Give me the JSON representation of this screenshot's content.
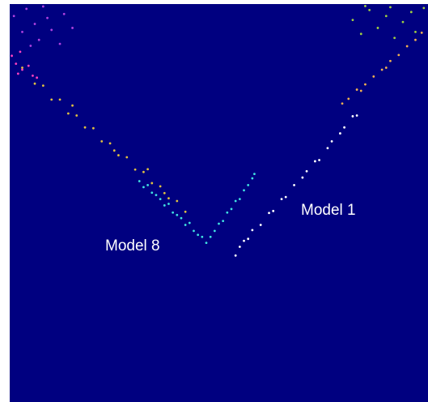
{
  "chart_data": {
    "type": "scatter",
    "background": "#000080",
    "xlim": [
      0,
      100
    ],
    "ylim": [
      0,
      100
    ],
    "annotations": [
      "Model 1",
      "Model 8"
    ],
    "series": [
      {
        "color": "#e0c040",
        "x": [
          3,
          6,
          8,
          10,
          12,
          14,
          15,
          16,
          18,
          20,
          22,
          24,
          25,
          26,
          28,
          30,
          32,
          33,
          34,
          36,
          37,
          38,
          40,
          42
        ],
        "values": [
          84,
          80,
          79.5,
          76,
          76,
          72.5,
          74.5,
          72,
          69,
          68.8,
          65.5,
          65,
          63.2,
          62,
          61.5,
          58.4,
          57.8,
          58.5,
          55,
          54.2,
          52.5,
          51.2,
          50.5,
          47.8
        ]
      },
      {
        "color": "#40e0e0",
        "x": [
          31,
          32,
          33,
          34,
          35,
          36,
          37,
          38,
          39,
          40,
          41,
          42,
          43,
          44,
          45,
          46,
          47,
          48,
          49,
          50,
          51,
          52,
          53,
          54,
          55,
          56,
          57,
          58,
          58.5
        ],
        "values": [
          55.5,
          54,
          54.5,
          52.6,
          52,
          51,
          49.4,
          49.8,
          47.6,
          47,
          46.2,
          44.5,
          45,
          43,
          42,
          41.5,
          40,
          41.5,
          43,
          44.8,
          45.5,
          47.6,
          48.5,
          50.5,
          51,
          53.2,
          54.5,
          56.2,
          57.3
        ]
      },
      {
        "color": "#ffffff",
        "x": [
          54,
          55,
          56,
          57,
          58,
          60,
          62,
          63,
          65,
          66,
          68,
          70,
          71,
          73,
          74,
          76,
          77,
          79,
          80,
          82,
          83
        ],
        "values": [
          36.8,
          39,
          40.5,
          41,
          43.2,
          44.5,
          47.5,
          48,
          51,
          51.5,
          54.5,
          56.4,
          58,
          60.5,
          60.8,
          63.8,
          65.5,
          67.5,
          69,
          71.8,
          72
        ]
      },
      {
        "color": "#f0b050",
        "x": [
          79.5,
          81,
          83,
          84,
          85,
          87,
          89,
          90,
          91,
          93,
          95,
          97,
          98.5
        ],
        "values": [
          75,
          76.2,
          78.5,
          78.2,
          79.8,
          81.8,
          83.5,
          84,
          85.7,
          87.2,
          89.4,
          91,
          92.8
        ]
      },
      {
        "color": "#a0d040",
        "x": [
          82,
          84,
          85,
          86,
          88,
          90,
          91,
          92,
          94,
          96,
          97,
          99
        ],
        "values": [
          96,
          92.5,
          99.5,
          98.5,
          94,
          97,
          99.2,
          91.5,
          95.5,
          98,
          93,
          99
        ]
      },
      {
        "color": "#b040e0",
        "x": [
          1,
          3,
          4,
          5,
          6,
          7,
          8,
          9,
          10,
          12,
          13,
          15
        ],
        "values": [
          97,
          93,
          98.8,
          89.5,
          95,
          91,
          99.4,
          96.5,
          93.5,
          90,
          97.5,
          94
        ]
      },
      {
        "color": "#ff40c0",
        "x": [
          0.5,
          1.5,
          2,
          2.5,
          3,
          4.5,
          5.5,
          6.5
        ],
        "values": [
          87,
          85,
          82.5,
          88,
          83.5,
          84.5,
          82,
          81.5
        ]
      }
    ]
  }
}
